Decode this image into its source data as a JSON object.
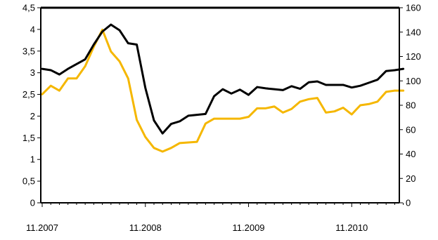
{
  "chart_data": {
    "type": "line",
    "title": "",
    "xlabel": "",
    "ylabel": "",
    "ylim": [
      0,
      4.5
    ],
    "y2lim": [
      0,
      160
    ],
    "x_ticks": [
      "11.2007",
      "11.2008",
      "11.2009",
      "11.2010"
    ],
    "y_ticks": [
      "0",
      "0,5",
      "1",
      "1,5",
      "2",
      "2,5",
      "3",
      "3,5",
      "4",
      "4,5"
    ],
    "y2_ticks": [
      "0",
      "20",
      "40",
      "60",
      "80",
      "100",
      "120",
      "140",
      "160"
    ],
    "grid": false,
    "legend": "none",
    "x_start": "11.2007",
    "x_step": "month",
    "series": [
      {
        "axis": "left",
        "color": "#000000",
        "values": [
          3.09,
          3.06,
          2.96,
          3.09,
          3.2,
          3.31,
          3.65,
          3.95,
          4.11,
          3.98,
          3.68,
          3.65,
          2.65,
          1.9,
          1.6,
          1.82,
          1.88,
          2.01,
          2.03,
          2.05,
          2.46,
          2.62,
          2.52,
          2.61,
          2.49,
          2.67,
          2.64,
          2.62,
          2.6,
          2.69,
          2.63,
          2.78,
          2.8,
          2.72,
          2.72,
          2.72,
          2.66,
          2.7,
          2.77,
          2.84,
          3.04,
          3.06,
          3.09
        ]
      },
      {
        "axis": "right",
        "color": "#F5B700",
        "values": [
          89,
          96,
          92,
          102,
          102,
          112,
          128,
          142,
          124,
          116,
          102,
          68,
          54,
          45,
          42,
          45,
          49,
          49.5,
          50,
          65,
          69,
          69,
          69,
          69,
          70.5,
          77.5,
          77.5,
          79,
          74,
          77,
          83,
          85,
          86,
          74,
          75,
          78,
          72.5,
          80,
          81,
          83,
          91,
          92,
          92
        ]
      }
    ]
  }
}
